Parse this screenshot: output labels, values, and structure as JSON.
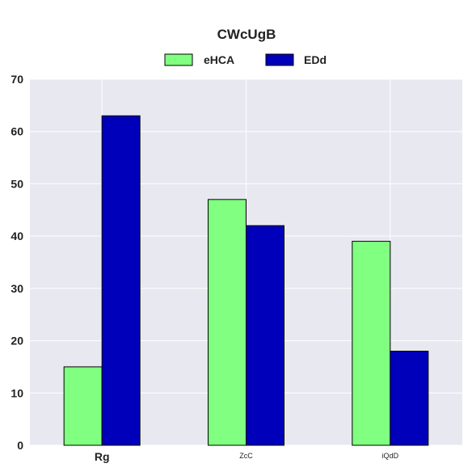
{
  "chart_data": {
    "type": "bar",
    "title": "CWcUgB",
    "categories": [
      "Rg",
      "ZcC",
      "iQdD"
    ],
    "series": [
      {
        "name": "eHCA",
        "values": [
          15,
          47,
          39
        ],
        "color": "#80ff80"
      },
      {
        "name": "EDd",
        "values": [
          63,
          42,
          18
        ],
        "color": "#0000bb"
      }
    ],
    "xlabel": "",
    "ylabel": "",
    "ylim": [
      0,
      70
    ],
    "yticks": [
      "0",
      "10",
      "20",
      "30",
      "40",
      "50",
      "60",
      "70"
    ],
    "grid": true,
    "legend_position": "top-center",
    "plot_background": "#e8e8f0",
    "grid_color": "#ffffff"
  }
}
